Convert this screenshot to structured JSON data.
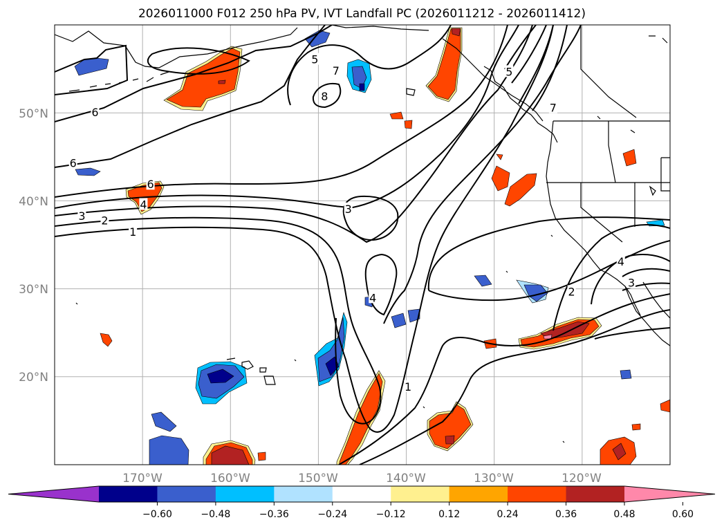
{
  "title": "2026011000 F012 250 hPa PV, IVT Landfall PC (2026011212 - 2026011412)",
  "map": {
    "lon_range": [
      -180,
      -110
    ],
    "lat_range": [
      10,
      60
    ],
    "lat_ticks": [
      {
        "value": 50,
        "label": "50°N"
      },
      {
        "value": 40,
        "label": "40°N"
      },
      {
        "value": 30,
        "label": "30°N"
      },
      {
        "value": 20,
        "label": "20°N"
      }
    ],
    "lon_ticks": [
      {
        "value": -170,
        "label": "170°W"
      },
      {
        "value": -160,
        "label": "160°W"
      },
      {
        "value": -150,
        "label": "150°W"
      },
      {
        "value": -140,
        "label": "140°W"
      },
      {
        "value": -130,
        "label": "130°W"
      },
      {
        "value": -120,
        "label": "120°W"
      }
    ],
    "contour_labels": [
      {
        "text": "6",
        "lon": -175.4,
        "lat": 50.1
      },
      {
        "text": "5",
        "lon": -150.4,
        "lat": 56.1
      },
      {
        "text": "7",
        "lon": -148.0,
        "lat": 54.8
      },
      {
        "text": "8",
        "lon": -149.3,
        "lat": 51.9
      },
      {
        "text": "6",
        "lon": -177.9,
        "lat": 44.3
      },
      {
        "text": "6",
        "lon": -169.1,
        "lat": 41.9
      },
      {
        "text": "4",
        "lon": -169.9,
        "lat": 39.6
      },
      {
        "text": "3",
        "lon": -176.9,
        "lat": 38.3
      },
      {
        "text": "2",
        "lon": -174.3,
        "lat": 37.8
      },
      {
        "text": "1",
        "lon": -171.1,
        "lat": 36.5
      },
      {
        "text": "3",
        "lon": -146.6,
        "lat": 39.1
      },
      {
        "text": "4",
        "lon": -143.8,
        "lat": 29.0
      },
      {
        "text": "1",
        "lon": -139.8,
        "lat": 18.9
      },
      {
        "text": "2",
        "lon": -121.2,
        "lat": 29.7
      },
      {
        "text": "4",
        "lon": -115.6,
        "lat": 33.1
      },
      {
        "text": "3",
        "lon": -114.4,
        "lat": 30.7
      },
      {
        "text": "5",
        "lon": -128.3,
        "lat": 54.7
      },
      {
        "text": "7",
        "lon": -123.3,
        "lat": 50.6
      }
    ]
  },
  "colorbar": {
    "ticks": [
      "−0.60",
      "−0.48",
      "−0.36",
      "−0.24",
      "−0.12",
      "0.12",
      "0.24",
      "0.36",
      "0.48",
      "0.60"
    ],
    "colors": [
      "#9932cc",
      "#00008b",
      "#3a5fcd",
      "#00bfff",
      "#b0e2ff",
      "#ffffff",
      "#fff08f",
      "#ffa500",
      "#ff4500",
      "#b22222",
      "#ff88aa"
    ]
  }
}
